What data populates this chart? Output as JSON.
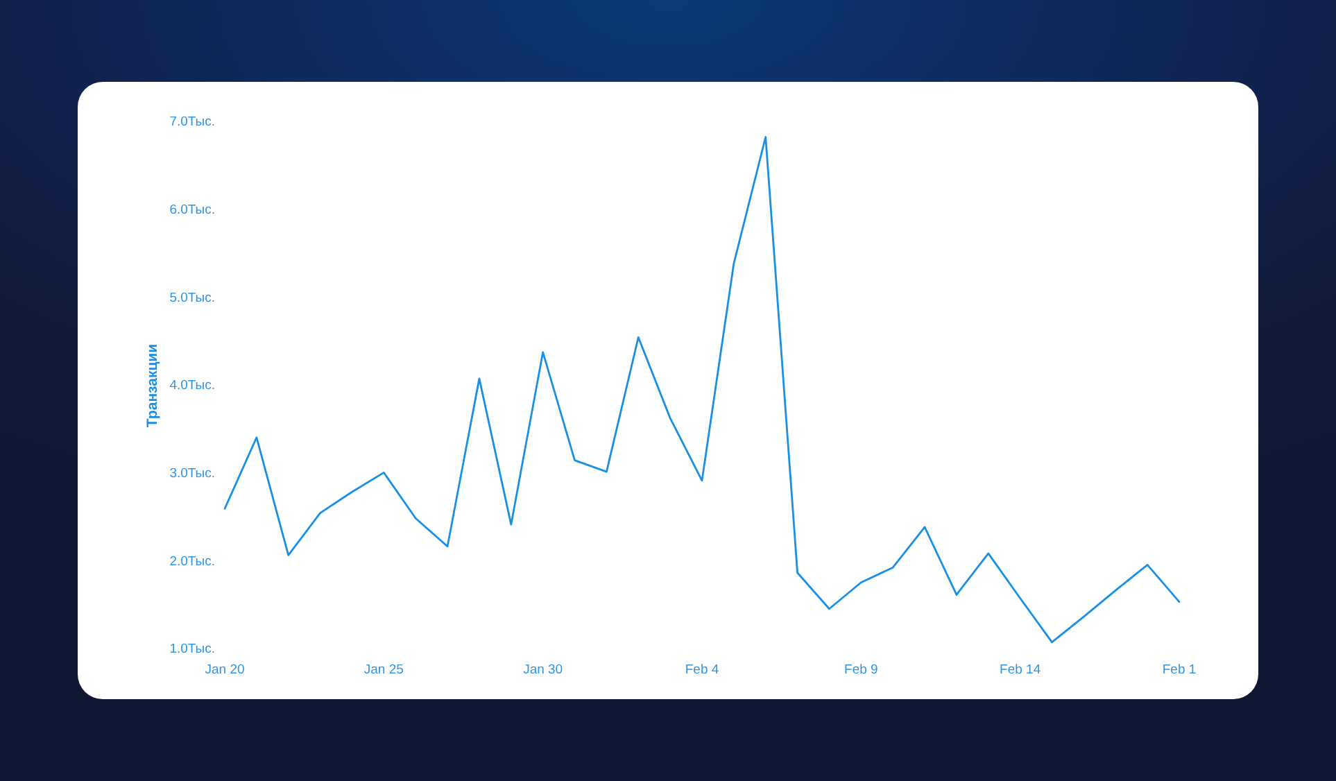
{
  "chart_data": {
    "type": "line",
    "ylabel": "Транзакции",
    "categories": [
      "Jan 20",
      null,
      null,
      null,
      null,
      "Jan 25",
      null,
      null,
      null,
      null,
      "Jan 30",
      null,
      null,
      null,
      null,
      "Feb 4",
      null,
      null,
      null,
      null,
      "Feb 9",
      null,
      null,
      null,
      null,
      "Feb 14",
      null,
      null,
      null,
      null,
      "Feb 1"
    ],
    "series": [
      {
        "color": "#1a8fe3",
        "values": [
          2.6,
          3.41,
          2.07,
          2.55,
          2.79,
          3.01,
          2.49,
          2.17,
          4.08,
          2.42,
          4.38,
          3.15,
          3.02,
          4.55,
          3.63,
          2.92,
          5.39,
          6.83,
          1.87,
          1.46,
          1.76,
          1.93,
          2.39,
          1.62,
          2.09,
          1.58,
          1.08,
          1.37,
          1.67,
          1.96,
          1.54
        ]
      }
    ],
    "ylim": [
      1,
      7
    ],
    "yticks": [
      {
        "value": 1,
        "label": "1.0Тыс."
      },
      {
        "value": 2,
        "label": "2.0Тыс."
      },
      {
        "value": 3,
        "label": "3.0Тыс."
      },
      {
        "value": 4,
        "label": "4.0Тыс."
      },
      {
        "value": 5,
        "label": "5.0Тыс."
      },
      {
        "value": 6,
        "label": "6.0Тыс."
      },
      {
        "value": 7,
        "label": "7.0Тыс."
      }
    ],
    "grid": false,
    "legend": false,
    "marker": "none",
    "line_style": "solid"
  }
}
